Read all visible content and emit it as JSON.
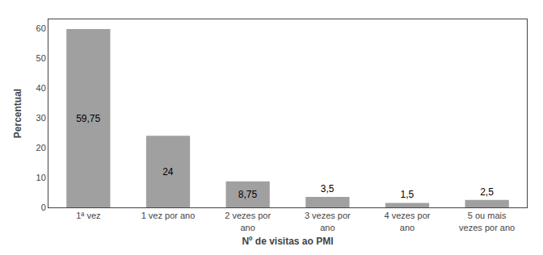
{
  "chart_data": {
    "type": "bar",
    "categories": [
      "1ª vez",
      "1 vez por ano",
      "2 vezes por\nano",
      "3 vezes por\nano",
      "4 vezes por\nano",
      "5 ou mais\nvezes por ano"
    ],
    "values": [
      59.75,
      24.0,
      8.75,
      3.5,
      1.5,
      2.5
    ],
    "value_labels": [
      "59,75",
      "24",
      "8,75",
      "3,5",
      "1,5",
      "2,5"
    ],
    "data_labels": true,
    "color": "#a0a0a0",
    "xlabel": "Nº de visitas ao PMI",
    "ylabel": "Percentual",
    "ylim": [
      0,
      63
    ],
    "yticks": [
      0,
      10,
      20,
      30,
      40,
      50,
      60
    ],
    "grid": false
  }
}
